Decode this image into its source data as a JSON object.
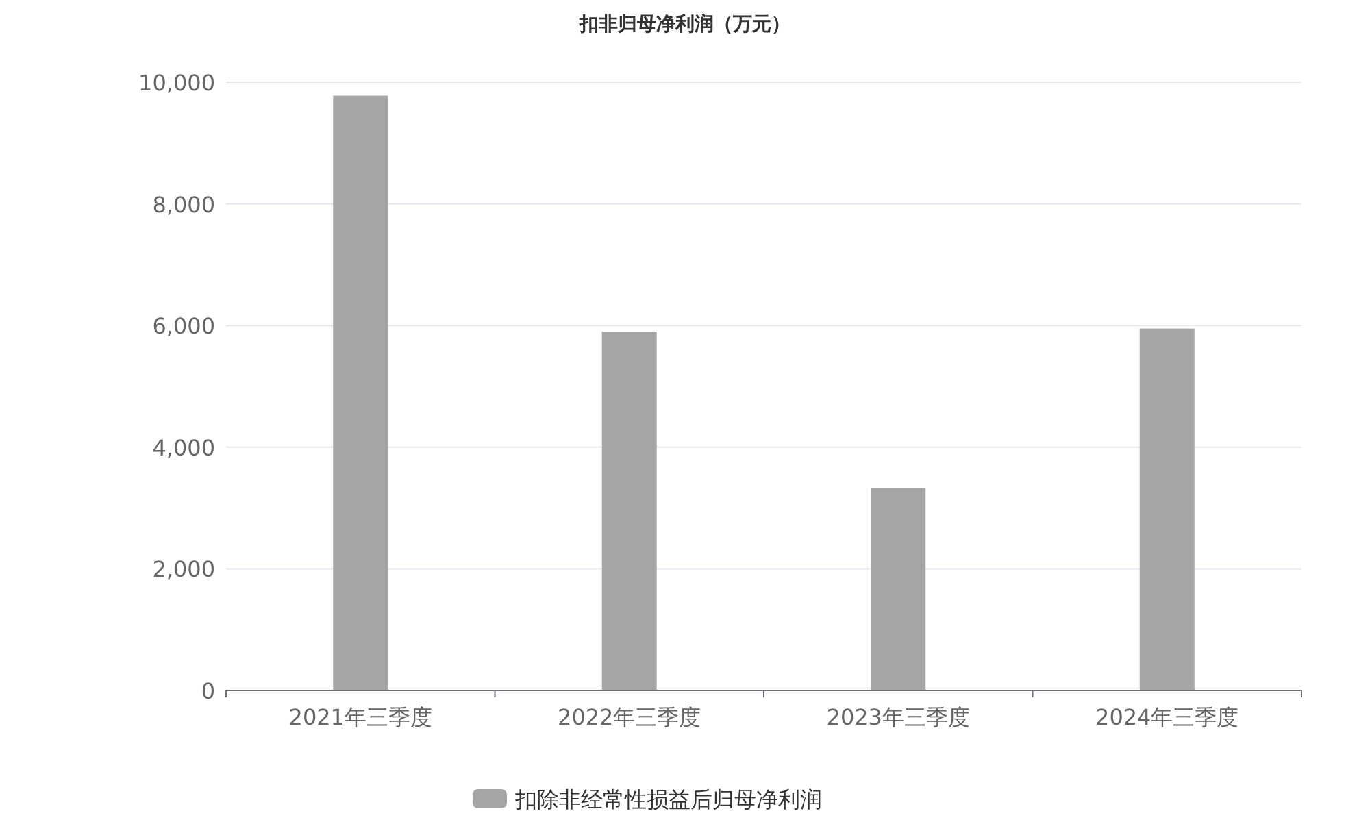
{
  "chart_data": {
    "type": "bar",
    "title": "扣非归母净利润（万元）",
    "categories": [
      "2021年三季度",
      "2022年三季度",
      "2023年三季度",
      "2024年三季度"
    ],
    "series": [
      {
        "name": "扣除非经常性损益后归母净利润",
        "color": "#a5a5a5",
        "values": [
          9780,
          5900,
          3330,
          5950
        ]
      }
    ],
    "ylim": [
      0,
      10000
    ],
    "yticks": [
      0,
      {
        "value": 2000,
        "label": "2,000"
      },
      {
        "value": 4000,
        "label": "4,000"
      },
      {
        "value": 6000,
        "label": "6,000"
      },
      {
        "value": 8000,
        "label": "8,000"
      },
      {
        "value": 10000,
        "label": "10,000"
      }
    ],
    "grid": "y",
    "legend": "bottom"
  }
}
